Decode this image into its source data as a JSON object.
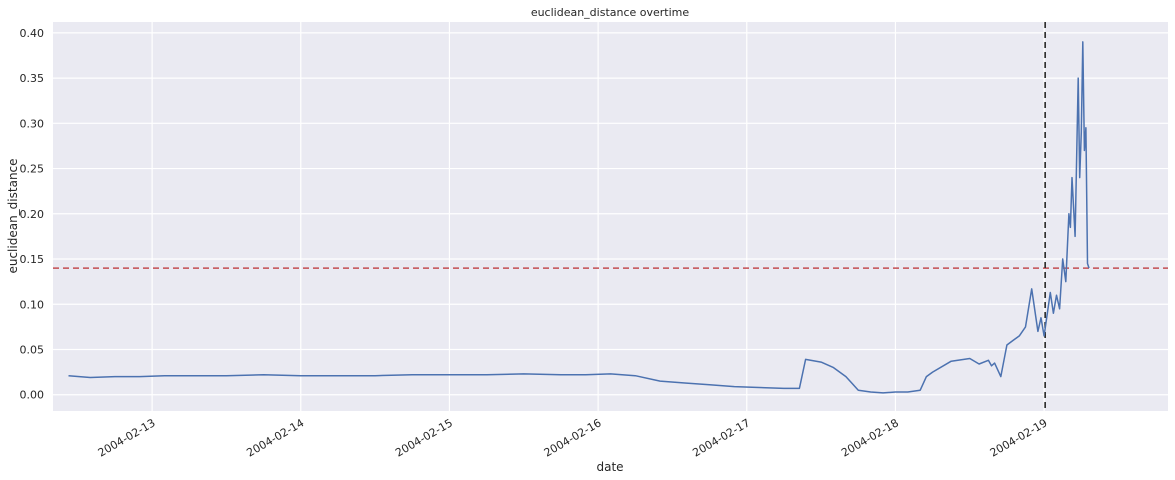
{
  "chart_data": {
    "type": "line",
    "title": "euclidean_distance overtime",
    "xlabel": "date",
    "ylabel": "euclidean_distance",
    "x_axis_type": "datetime",
    "xlim": [
      "2004-02-12T08:00",
      "2004-02-19T20:00"
    ],
    "ylim": [
      -0.018,
      0.412
    ],
    "x_ticks": [
      "2004-02-13",
      "2004-02-14",
      "2004-02-15",
      "2004-02-16",
      "2004-02-17",
      "2004-02-18",
      "2004-02-19"
    ],
    "y_ticks": [
      "0.00",
      "0.05",
      "0.10",
      "0.15",
      "0.20",
      "0.25",
      "0.30",
      "0.35",
      "0.40"
    ],
    "grid": true,
    "style": "seaborn-darkgrid",
    "colors": {
      "background": "#EAEAF2",
      "grid": "#FFFFFF",
      "series": "#4C72B0",
      "threshold": "#C44E52",
      "event": "#262626"
    },
    "series": [
      {
        "x": [
          "2004-02-12T10:30",
          "2004-02-12T14:00",
          "2004-02-12T18:00",
          "2004-02-12T22:00",
          "2004-02-13T02:00",
          "2004-02-13T06:00",
          "2004-02-13T12:00",
          "2004-02-13T18:00",
          "2004-02-14T00:00",
          "2004-02-14T06:00",
          "2004-02-14T12:00",
          "2004-02-14T18:00",
          "2004-02-15T00:00",
          "2004-02-15T06:00",
          "2004-02-15T12:00",
          "2004-02-15T18:00",
          "2004-02-15T22:00",
          "2004-02-16T02:00",
          "2004-02-16T06:00",
          "2004-02-16T10:00",
          "2004-02-16T14:00",
          "2004-02-16T18:00",
          "2004-02-16T22:00",
          "2004-02-17T02:00",
          "2004-02-17T06:00",
          "2004-02-17T08:30",
          "2004-02-17T09:30",
          "2004-02-17T12:00",
          "2004-02-17T14:00",
          "2004-02-17T16:00",
          "2004-02-17T18:00",
          "2004-02-17T20:00",
          "2004-02-17T22:00",
          "2004-02-18T00:00",
          "2004-02-18T02:00",
          "2004-02-18T04:00",
          "2004-02-18T05:00",
          "2004-02-18T06:00",
          "2004-02-18T09:00",
          "2004-02-18T12:00",
          "2004-02-18T13:30",
          "2004-02-18T15:00",
          "2004-02-18T15:30",
          "2004-02-18T16:00",
          "2004-02-18T17:00",
          "2004-02-18T18:00",
          "2004-02-18T19:00",
          "2004-02-18T20:00",
          "2004-02-18T21:00",
          "2004-02-18T22:00",
          "2004-02-18T23:00",
          "2004-02-18T23:30",
          "2004-02-19T00:00",
          "2004-02-19T01:00",
          "2004-02-19T01:30",
          "2004-02-19T02:00",
          "2004-02-19T02:30",
          "2004-02-19T03:00",
          "2004-02-19T03:30",
          "2004-02-19T04:00",
          "2004-02-19T04:15",
          "2004-02-19T04:30",
          "2004-02-19T05:00",
          "2004-02-19T05:30",
          "2004-02-19T05:45",
          "2004-02-19T06:00",
          "2004-02-19T06:15",
          "2004-02-19T06:30",
          "2004-02-19T06:45",
          "2004-02-19T07:00",
          "2004-02-19T07:15"
        ],
        "y": [
          0.021,
          0.019,
          0.02,
          0.02,
          0.021,
          0.021,
          0.021,
          0.022,
          0.021,
          0.021,
          0.021,
          0.022,
          0.022,
          0.022,
          0.023,
          0.022,
          0.022,
          0.023,
          0.021,
          0.015,
          0.013,
          0.011,
          0.009,
          0.008,
          0.007,
          0.007,
          0.039,
          0.036,
          0.03,
          0.02,
          0.005,
          0.003,
          0.002,
          0.003,
          0.003,
          0.005,
          0.02,
          0.025,
          0.037,
          0.04,
          0.034,
          0.038,
          0.032,
          0.035,
          0.02,
          0.055,
          0.06,
          0.065,
          0.075,
          0.117,
          0.07,
          0.085,
          0.065,
          0.113,
          0.09,
          0.11,
          0.095,
          0.15,
          0.125,
          0.2,
          0.185,
          0.24,
          0.175,
          0.35,
          0.24,
          0.29,
          0.39,
          0.27,
          0.295,
          0.145,
          0.14
        ]
      }
    ],
    "reference_lines": [
      {
        "orientation": "horizontal",
        "value": 0.14,
        "style": "dashed",
        "color": "#C44E52"
      },
      {
        "orientation": "vertical",
        "value": "2004-02-19T00:10",
        "style": "dashed",
        "color": "#262626"
      }
    ]
  }
}
